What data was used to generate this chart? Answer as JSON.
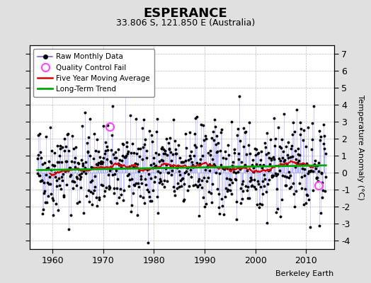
{
  "title": "ESPERANCE",
  "subtitle": "33.806 S, 121.850 E (Australia)",
  "ylabel": "Temperature Anomaly (°C)",
  "xlim": [
    1955.5,
    2015.5
  ],
  "ylim": [
    -4.5,
    7.5
  ],
  "yticks": [
    -4,
    -3,
    -2,
    -1,
    0,
    1,
    2,
    3,
    4,
    5,
    6,
    7
  ],
  "xticks": [
    1960,
    1970,
    1980,
    1990,
    2000,
    2010
  ],
  "background_color": "#e0e0e0",
  "plot_bg_color": "#ffffff",
  "raw_line_color": "#6666ff",
  "raw_line_alpha": 0.45,
  "raw_dot_color": "#000000",
  "ma_color": "#dd0000",
  "trend_color": "#00aa00",
  "qc_fail_color": "#ff44ff",
  "qc_fail_points": [
    [
      1971.25,
      2.7
    ],
    [
      2012.5,
      -0.75
    ]
  ],
  "watermark": "Berkeley Earth",
  "seed": 42,
  "start_year": 1957,
  "end_year": 2014
}
